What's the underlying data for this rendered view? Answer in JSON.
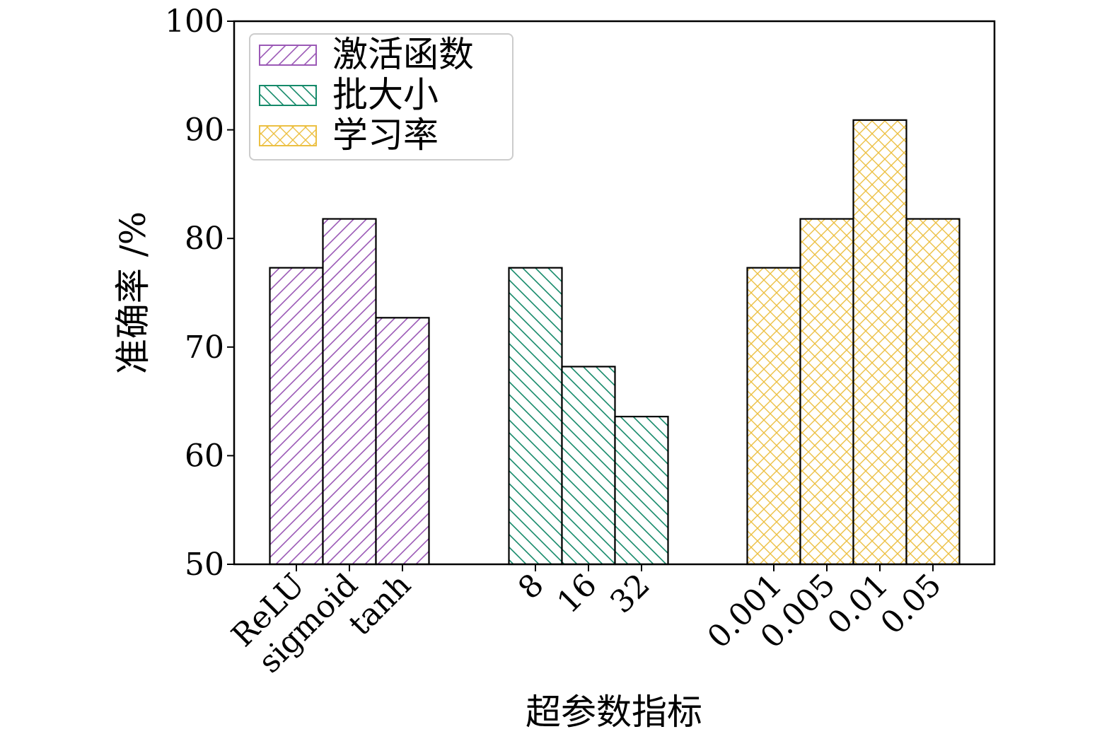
{
  "chart_data": {
    "type": "bar",
    "title": "",
    "xlabel": "超参数指标",
    "ylabel": "准确率 /%",
    "ylim": [
      50,
      100
    ],
    "yticks": [
      "50",
      "60",
      "70",
      "80",
      "90",
      "100"
    ],
    "legend_position": "top-left",
    "groups": [
      {
        "name": "激活函数",
        "color": "#9b59b6",
        "pattern": "forward-diagonal",
        "categories": [
          "ReLU",
          "sigmoid",
          "tanh"
        ],
        "values": [
          77.3,
          81.8,
          72.7
        ]
      },
      {
        "name": "批大小",
        "color": "#168a6a",
        "pattern": "backward-diagonal",
        "categories": [
          "8",
          "16",
          "32"
        ],
        "values": [
          77.3,
          68.2,
          63.6
        ]
      },
      {
        "name": "学习率",
        "color": "#ecc043",
        "pattern": "crosshatch",
        "categories": [
          "0.001",
          "0.005",
          "0.01",
          "0.05"
        ],
        "values": [
          77.3,
          81.8,
          90.9,
          81.8
        ]
      }
    ]
  }
}
